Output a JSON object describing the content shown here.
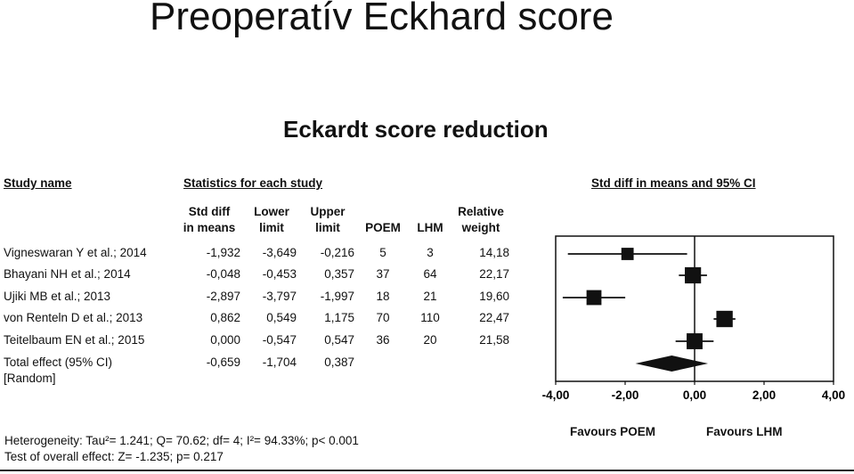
{
  "slide_title": "Preoperatív Eckhard score",
  "chart_data": {
    "type": "forest",
    "title": "Eckardt score reduction",
    "headers": {
      "study_name": "Study name",
      "statistics": "Statistics for each study",
      "ci_plot": "Std diff in means and 95% CI"
    },
    "columns": [
      {
        "key": "std",
        "line1": "Std diff",
        "line2": "in means"
      },
      {
        "key": "lower",
        "line1": "Lower",
        "line2": "limit"
      },
      {
        "key": "upper",
        "line1": "Upper",
        "line2": "limit"
      },
      {
        "key": "poem",
        "line1": "",
        "line2": "POEM"
      },
      {
        "key": "lhm",
        "line1": "",
        "line2": "LHM"
      },
      {
        "key": "weight",
        "line1": "Relative",
        "line2": "weight"
      }
    ],
    "studies": [
      {
        "name": "Vigneswaran Y et al.; 2014",
        "std": "-1,932",
        "lower": "-3,649",
        "upper": "-0,216",
        "poem": "5",
        "lhm": "3",
        "weight": "14,18",
        "est": -1.932,
        "lo": -3.649,
        "hi": -0.216,
        "w": 14.18
      },
      {
        "name": "Bhayani NH et al.; 2014",
        "std": "-0,048",
        "lower": "-0,453",
        "upper": "0,357",
        "poem": "37",
        "lhm": "64",
        "weight": "22,17",
        "est": -0.048,
        "lo": -0.453,
        "hi": 0.357,
        "w": 22.17
      },
      {
        "name": "Ujiki MB et al.; 2013",
        "std": "-2,897",
        "lower": "-3,797",
        "upper": "-1,997",
        "poem": "18",
        "lhm": "21",
        "weight": "19,60",
        "est": -2.897,
        "lo": -3.797,
        "hi": -1.997,
        "w": 19.6
      },
      {
        "name": "von Renteln D et al.; 2013",
        "std": "0,862",
        "lower": "0,549",
        "upper": "1,175",
        "poem": "70",
        "lhm": "110",
        "weight": "22,47",
        "est": 0.862,
        "lo": 0.549,
        "hi": 1.175,
        "w": 22.47
      },
      {
        "name": "Teitelbaum EN et al.; 2015",
        "std": "0,000",
        "lower": "-0,547",
        "upper": "0,547",
        "poem": "36",
        "lhm": "20",
        "weight": "21,58",
        "est": 0.0,
        "lo": -0.547,
        "hi": 0.547,
        "w": 21.58
      }
    ],
    "total": {
      "line1": "Total effect (95% CI)",
      "line2": "[Random]",
      "std": "-0,659",
      "lower": "-1,704",
      "upper": "0,387",
      "est": -0.659,
      "lo": -1.704,
      "hi": 0.387
    },
    "x_axis": {
      "range": [
        -4,
        4
      ],
      "ticks": [
        -4,
        -2,
        0,
        2,
        4
      ],
      "tick_labels": [
        "-4,00",
        "-2,00",
        "0,00",
        "2,00",
        "4,00"
      ]
    },
    "favours_left": "Favours POEM",
    "favours_right": "Favours LHM",
    "heterogeneity": "Heterogeneity: Tau²=  1.241; Q= 70.62; df=  4; I²= 94.33%; p< 0.001",
    "overall_test": "Test of overall effect: Z= -1.235; p= 0.217"
  }
}
